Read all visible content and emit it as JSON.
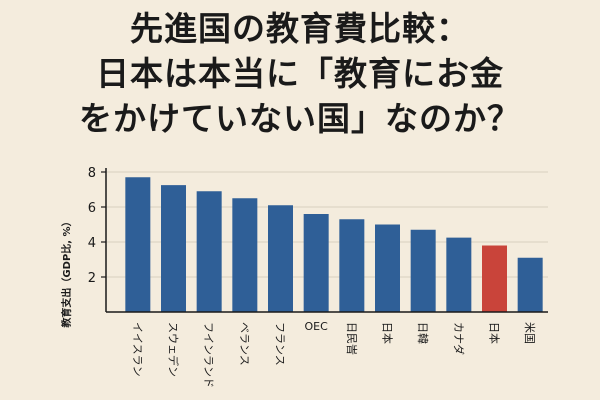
{
  "title": {
    "line1": "先進国の教育費比較：",
    "line2": "日本は本当に「教育にお金",
    "line3": "をかけていない国」なのか？"
  },
  "chart_data": {
    "type": "bar",
    "ylabel": "教育支出（GDP比, %）",
    "xlabel": "",
    "ylim": [
      0,
      8
    ],
    "yticks": [
      2,
      4,
      6,
      8
    ],
    "grid": true,
    "categories": [
      "イイスラン",
      "スウェデン",
      "フインランド",
      "ベランス",
      "フランス",
      "OEC",
      "日民旹",
      "日本",
      "日韓",
      "カナダ",
      "日本",
      "米国"
    ],
    "series": [
      {
        "values": [
          7.7,
          7.25,
          6.9,
          6.5,
          6.1,
          5.6,
          5.3,
          5.0,
          4.7,
          4.25,
          3.8,
          3.1
        ],
        "colors": [
          "#2f5f97",
          "#2f5f97",
          "#2f5f97",
          "#2f5f97",
          "#2f5f97",
          "#2f5f97",
          "#2f5f97",
          "#2f5f97",
          "#2f5f97",
          "#2f5f97",
          "#c9443a",
          "#2f5f97"
        ]
      }
    ]
  },
  "colors": {
    "background": "#f4ecdd",
    "bar": "#2f5f97",
    "highlight": "#c9443a",
    "grid": "#d9d0bf",
    "axis": "#1a1a1a"
  }
}
